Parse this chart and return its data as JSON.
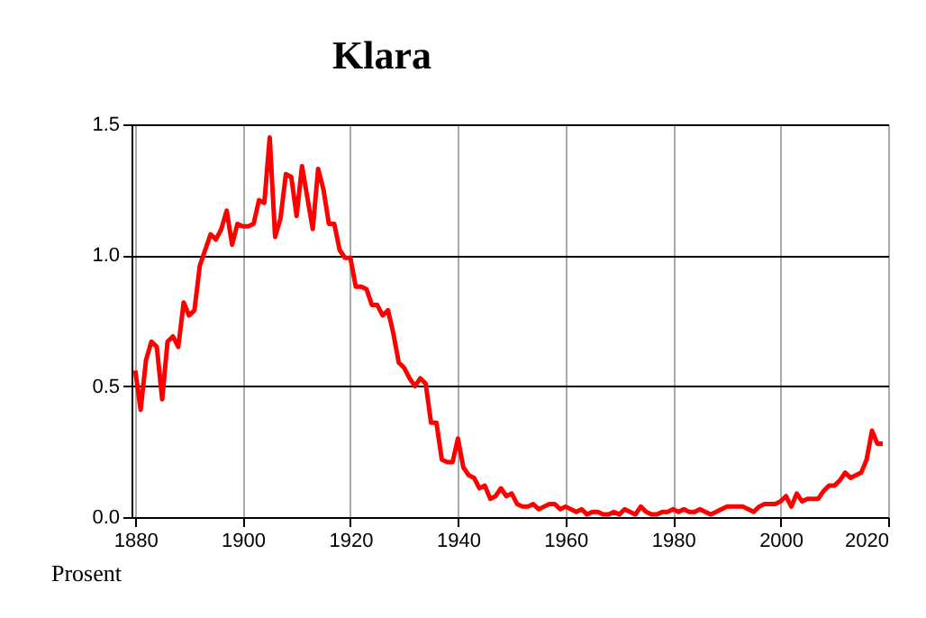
{
  "chart_data": {
    "type": "line",
    "title": "Klara",
    "ylabel": "Prosent",
    "x": [
      1880,
      1881,
      1882,
      1883,
      1884,
      1885,
      1886,
      1887,
      1888,
      1889,
      1890,
      1891,
      1892,
      1893,
      1894,
      1895,
      1896,
      1897,
      1898,
      1899,
      1900,
      1901,
      1902,
      1903,
      1904,
      1905,
      1906,
      1907,
      1908,
      1909,
      1910,
      1911,
      1912,
      1913,
      1914,
      1915,
      1916,
      1917,
      1918,
      1919,
      1920,
      1921,
      1922,
      1923,
      1924,
      1925,
      1926,
      1927,
      1928,
      1929,
      1930,
      1931,
      1932,
      1933,
      1934,
      1935,
      1936,
      1937,
      1938,
      1939,
      1940,
      1941,
      1942,
      1943,
      1944,
      1945,
      1946,
      1947,
      1948,
      1949,
      1950,
      1951,
      1952,
      1953,
      1954,
      1955,
      1956,
      1957,
      1958,
      1959,
      1960,
      1961,
      1962,
      1963,
      1964,
      1965,
      1966,
      1967,
      1968,
      1969,
      1970,
      1971,
      1972,
      1973,
      1974,
      1975,
      1976,
      1977,
      1978,
      1979,
      1980,
      1981,
      1982,
      1983,
      1984,
      1985,
      1986,
      1987,
      1988,
      1989,
      1990,
      1991,
      1992,
      1993,
      1994,
      1995,
      1996,
      1997,
      1998,
      1999,
      2000,
      2001,
      2002,
      2003,
      2004,
      2005,
      2006,
      2007,
      2008,
      2009,
      2010,
      2011,
      2012,
      2013,
      2014,
      2015,
      2016,
      2017,
      2018,
      2019
    ],
    "series": [
      {
        "color": "#ff0000",
        "values": [
          0.56,
          0.41,
          0.6,
          0.67,
          0.65,
          0.45,
          0.67,
          0.69,
          0.65,
          0.82,
          0.77,
          0.79,
          0.96,
          1.02,
          1.08,
          1.06,
          1.1,
          1.17,
          1.04,
          1.12,
          1.11,
          1.11,
          1.12,
          1.21,
          1.2,
          1.45,
          1.07,
          1.14,
          1.31,
          1.3,
          1.15,
          1.34,
          1.22,
          1.1,
          1.33,
          1.25,
          1.12,
          1.12,
          1.02,
          0.99,
          0.99,
          0.88,
          0.88,
          0.87,
          0.81,
          0.81,
          0.77,
          0.79,
          0.7,
          0.59,
          0.57,
          0.53,
          0.5,
          0.53,
          0.51,
          0.36,
          0.36,
          0.22,
          0.21,
          0.21,
          0.3,
          0.19,
          0.16,
          0.15,
          0.11,
          0.12,
          0.07,
          0.08,
          0.11,
          0.08,
          0.09,
          0.05,
          0.04,
          0.04,
          0.05,
          0.03,
          0.04,
          0.05,
          0.05,
          0.03,
          0.04,
          0.03,
          0.02,
          0.03,
          0.01,
          0.02,
          0.02,
          0.01,
          0.01,
          0.02,
          0.01,
          0.03,
          0.02,
          0.01,
          0.04,
          0.02,
          0.01,
          0.01,
          0.02,
          0.02,
          0.03,
          0.02,
          0.03,
          0.02,
          0.02,
          0.03,
          0.02,
          0.01,
          0.02,
          0.03,
          0.04,
          0.04,
          0.04,
          0.04,
          0.03,
          0.02,
          0.04,
          0.05,
          0.05,
          0.05,
          0.06,
          0.08,
          0.04,
          0.09,
          0.06,
          0.07,
          0.07,
          0.07,
          0.1,
          0.12,
          0.12,
          0.14,
          0.17,
          0.15,
          0.16,
          0.17,
          0.22,
          0.33,
          0.28,
          0.28
        ]
      }
    ],
    "xlim": [
      1879.3,
      2020
    ],
    "xticks": [
      1880,
      1900,
      1920,
      1940,
      1960,
      1980,
      2000,
      2020
    ],
    "ylim": [
      0,
      1.5
    ],
    "yticks": [
      {
        "value": 0,
        "label": "0.0"
      },
      0.5,
      {
        "value": 1,
        "label": "1.0"
      },
      1.5
    ],
    "grid": true,
    "legend": false,
    "line_style": "solid",
    "marker": "none"
  }
}
